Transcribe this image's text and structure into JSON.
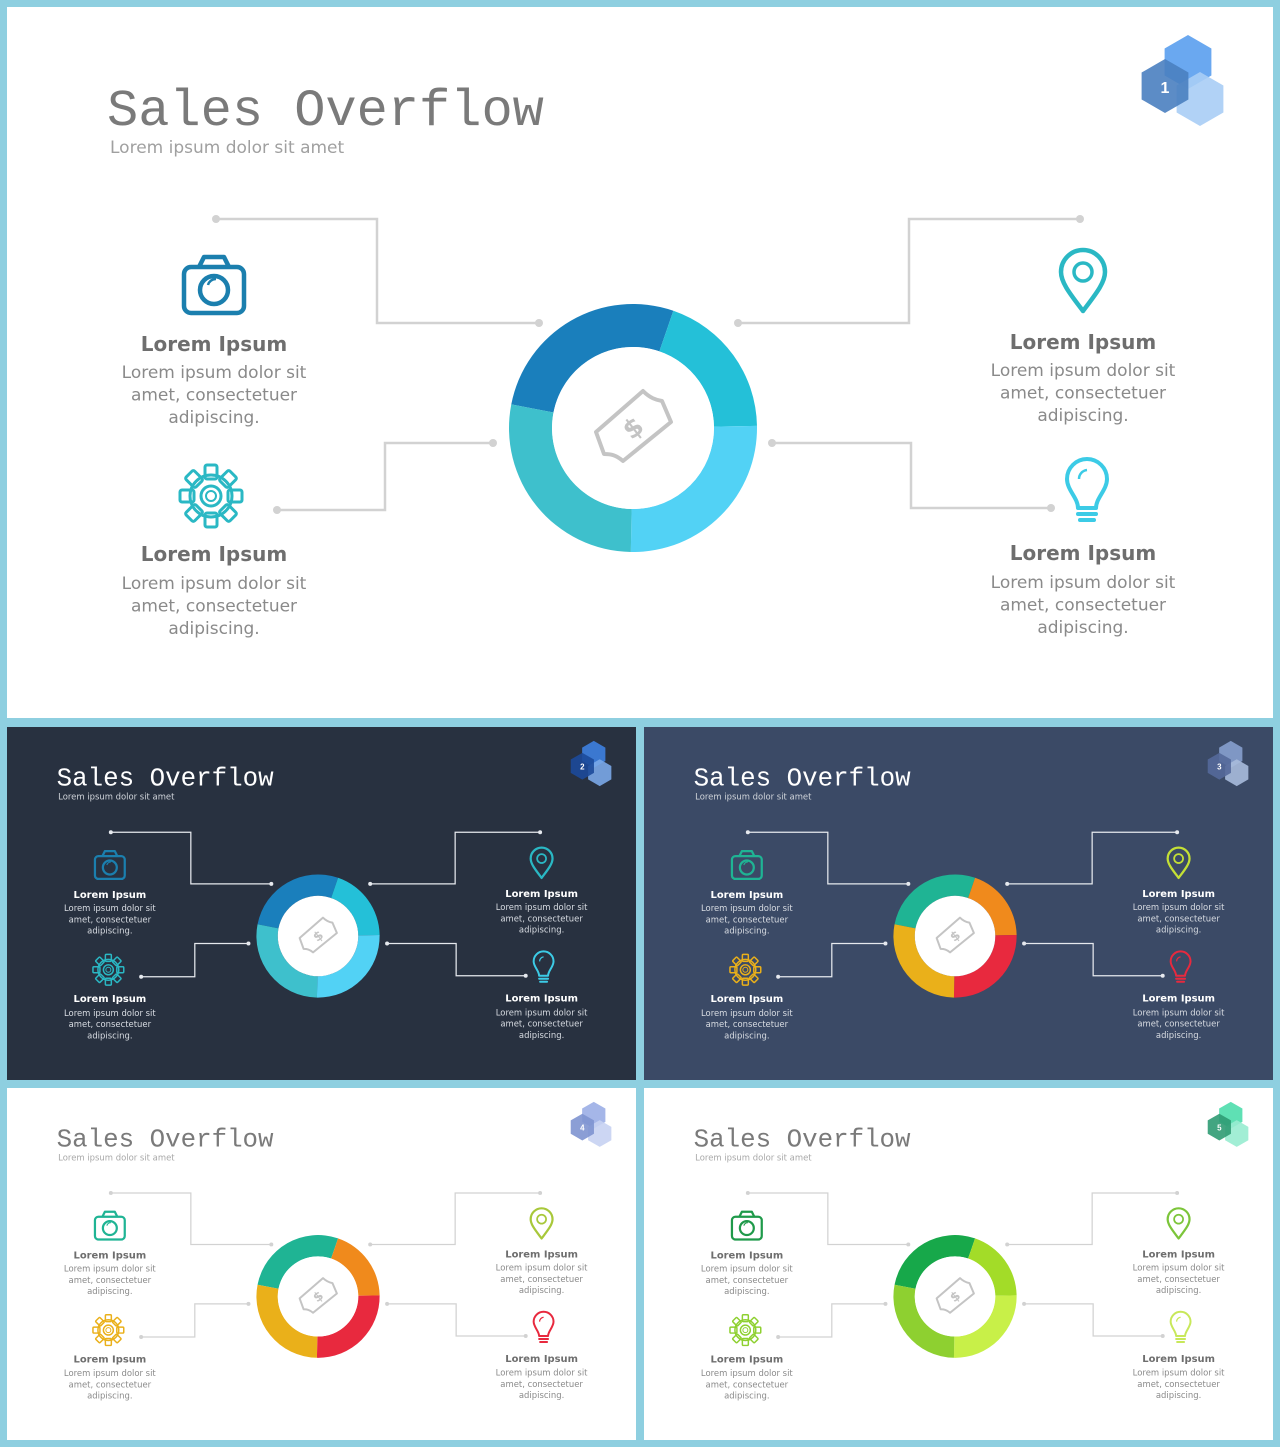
{
  "slides": [
    {
      "number": "1",
      "title": "Sales Overflow",
      "subtitle": "Lorem ipsum dolor sit amet",
      "theme": {
        "bg": "#ffffff",
        "title_color": "#7a7a7a",
        "subtitle_color": "#a0a0a0",
        "heading_color": "#6e6e6e",
        "text_color": "#8a8a8a",
        "line_color": "#d2d2d2",
        "center_icon_color": "#c4c4c4"
      },
      "badge_colors": [
        "#6aa8f0",
        "#4a7fc0",
        "#a8cdf5"
      ],
      "ring_colors": [
        "#1a7fbc",
        "#24c0d8",
        "#52d2f5",
        "#3ec0cc"
      ],
      "icon_colors": {
        "camera": "#1b7fae",
        "gear": "#2ab8c4",
        "pin": "#2ab8c4",
        "bulb": "#3ccbe6"
      },
      "items": [
        {
          "icon": "camera-icon",
          "heading": "Lorem Ipsum",
          "lines": [
            "Lorem ipsum dolor sit",
            "amet, consectetuer",
            "adipiscing."
          ]
        },
        {
          "icon": "gear-icon",
          "heading": "Lorem Ipsum",
          "lines": [
            "Lorem ipsum dolor sit",
            "amet, consectetuer",
            "adipiscing."
          ]
        },
        {
          "icon": "pin-icon",
          "heading": "Lorem Ipsum",
          "lines": [
            "Lorem ipsum dolor sit",
            "amet, consectetuer",
            "adipiscing."
          ]
        },
        {
          "icon": "bulb-icon",
          "heading": "Lorem Ipsum",
          "lines": [
            "Lorem ipsum dolor sit",
            "amet, consectetuer",
            "adipiscing."
          ]
        }
      ],
      "center_icon": "dollar-bill-icon"
    },
    {
      "number": "2",
      "title": "Sales Overflow",
      "subtitle": "Lorem ipsum dolor sit amet",
      "theme": {
        "bg": "#283140",
        "title_color": "#ffffff",
        "subtitle_color": "#d0d4da",
        "heading_color": "#ffffff",
        "text_color": "#d8dce2",
        "line_color": "#e6e9ee",
        "center_icon_color": "#c4c4c4"
      },
      "badge_colors": [
        "#3b78d0",
        "#1c4a9a",
        "#7aa8e8"
      ],
      "ring_colors": [
        "#1a7fbc",
        "#24c0d8",
        "#52d2f5",
        "#3ec0cc"
      ],
      "icon_colors": {
        "camera": "#1b7fae",
        "gear": "#2ab8c4",
        "pin": "#2ab8c4",
        "bulb": "#3ccbe6"
      },
      "items": [
        {
          "icon": "camera-icon",
          "heading": "Lorem Ipsum",
          "lines": [
            "Lorem ipsum dolor sit",
            "amet, consectetuer",
            "adipiscing."
          ]
        },
        {
          "icon": "gear-icon",
          "heading": "Lorem Ipsum",
          "lines": [
            "Lorem ipsum dolor sit",
            "amet, consectetuer",
            "adipiscing."
          ]
        },
        {
          "icon": "pin-icon",
          "heading": "Lorem Ipsum",
          "lines": [
            "Lorem ipsum dolor sit",
            "amet, consectetuer",
            "adipiscing."
          ]
        },
        {
          "icon": "bulb-icon",
          "heading": "Lorem Ipsum",
          "lines": [
            "Lorem ipsum dolor sit",
            "amet, consectetuer",
            "adipiscing."
          ]
        }
      ],
      "center_icon": "dollar-bill-icon"
    },
    {
      "number": "3",
      "title": "Sales Overflow",
      "subtitle": "Lorem ipsum dolor sit amet",
      "theme": {
        "bg": "#3b4a66",
        "title_color": "#ffffff",
        "subtitle_color": "#d0d4da",
        "heading_color": "#ffffff",
        "text_color": "#d8dce2",
        "line_color": "#e6e9ee",
        "center_icon_color": "#c4c4c4"
      },
      "badge_colors": [
        "#7f97c4",
        "#55699a",
        "#a9bbdc"
      ],
      "ring_colors": [
        "#1fb494",
        "#f08a1c",
        "#e8293e",
        "#eab01a"
      ],
      "icon_colors": {
        "camera": "#1fb494",
        "gear": "#eab01a",
        "pin": "#c4e035",
        "bulb": "#e8293e"
      },
      "items": [
        {
          "icon": "camera-icon",
          "heading": "Lorem Ipsum",
          "lines": [
            "Lorem ipsum dolor sit",
            "amet, consectetuer",
            "adipiscing."
          ]
        },
        {
          "icon": "gear-icon",
          "heading": "Lorem Ipsum",
          "lines": [
            "Lorem ipsum dolor sit",
            "amet, consectetuer",
            "adipiscing."
          ]
        },
        {
          "icon": "pin-icon",
          "heading": "Lorem Ipsum",
          "lines": [
            "Lorem ipsum dolor sit",
            "amet, consectetuer",
            "adipiscing."
          ]
        },
        {
          "icon": "bulb-icon",
          "heading": "Lorem Ipsum",
          "lines": [
            "Lorem ipsum dolor sit",
            "amet, consectetuer",
            "adipiscing."
          ]
        }
      ],
      "center_icon": "dollar-bill-icon"
    },
    {
      "number": "4",
      "title": "Sales Overflow",
      "subtitle": "Lorem ipsum dolor sit amet",
      "theme": {
        "bg": "#ffffff",
        "title_color": "#7a7a7a",
        "subtitle_color": "#a8a8a8",
        "heading_color": "#6e6e6e",
        "text_color": "#8a8a8a",
        "line_color": "#d2d2d2",
        "center_icon_color": "#c4c4c4"
      },
      "badge_colors": [
        "#a5b6e8",
        "#7e93d0",
        "#c6d2f2"
      ],
      "ring_colors": [
        "#1fb494",
        "#f08a1c",
        "#e8293e",
        "#eab01a"
      ],
      "icon_colors": {
        "camera": "#1fb494",
        "gear": "#eab01a",
        "pin": "#a8c83a",
        "bulb": "#e8293e"
      },
      "items": [
        {
          "icon": "camera-icon",
          "heading": "Lorem Ipsum",
          "lines": [
            "Lorem ipsum dolor sit",
            "amet, consectetuer",
            "adipiscing."
          ]
        },
        {
          "icon": "gear-icon",
          "heading": "Lorem Ipsum",
          "lines": [
            "Lorem ipsum dolor sit",
            "amet, consectetuer",
            "adipiscing."
          ]
        },
        {
          "icon": "pin-icon",
          "heading": "Lorem Ipsum",
          "lines": [
            "Lorem ipsum dolor sit",
            "amet, consectetuer",
            "adipiscing."
          ]
        },
        {
          "icon": "bulb-icon",
          "heading": "Lorem Ipsum",
          "lines": [
            "Lorem ipsum dolor sit",
            "amet, consectetuer",
            "adipiscing."
          ]
        }
      ],
      "center_icon": "dollar-bill-icon"
    },
    {
      "number": "5",
      "title": "Sales Overflow",
      "subtitle": "Lorem ipsum dolor sit amet",
      "theme": {
        "bg": "#ffffff",
        "title_color": "#7a7a7a",
        "subtitle_color": "#a8a8a8",
        "heading_color": "#6e6e6e",
        "text_color": "#8a8a8a",
        "line_color": "#d2d2d2",
        "center_icon_color": "#c4c4c4"
      },
      "badge_colors": [
        "#5fe0b4",
        "#2f9b73",
        "#98ecd0"
      ],
      "ring_colors": [
        "#17a84a",
        "#a3dc28",
        "#c8f048",
        "#8ed030"
      ],
      "icon_colors": {
        "camera": "#1f9a4a",
        "gear": "#8ed030",
        "pin": "#7cc53a",
        "bulb": "#c8e85a"
      },
      "items": [
        {
          "icon": "camera-icon",
          "heading": "Lorem Ipsum",
          "lines": [
            "Lorem ipsum dolor sit",
            "amet, consectetuer",
            "adipiscing."
          ]
        },
        {
          "icon": "gear-icon",
          "heading": "Lorem Ipsum",
          "lines": [
            "Lorem ipsum dolor sit",
            "amet, consectetuer",
            "adipiscing."
          ]
        },
        {
          "icon": "pin-icon",
          "heading": "Lorem Ipsum",
          "lines": [
            "Lorem ipsum dolor sit",
            "amet, consectetuer",
            "adipiscing."
          ]
        },
        {
          "icon": "bulb-icon",
          "heading": "Lorem Ipsum",
          "lines": [
            "Lorem ipsum dolor sit",
            "amet, consectetuer",
            "adipiscing."
          ]
        }
      ],
      "center_icon": "dollar-bill-icon"
    }
  ]
}
